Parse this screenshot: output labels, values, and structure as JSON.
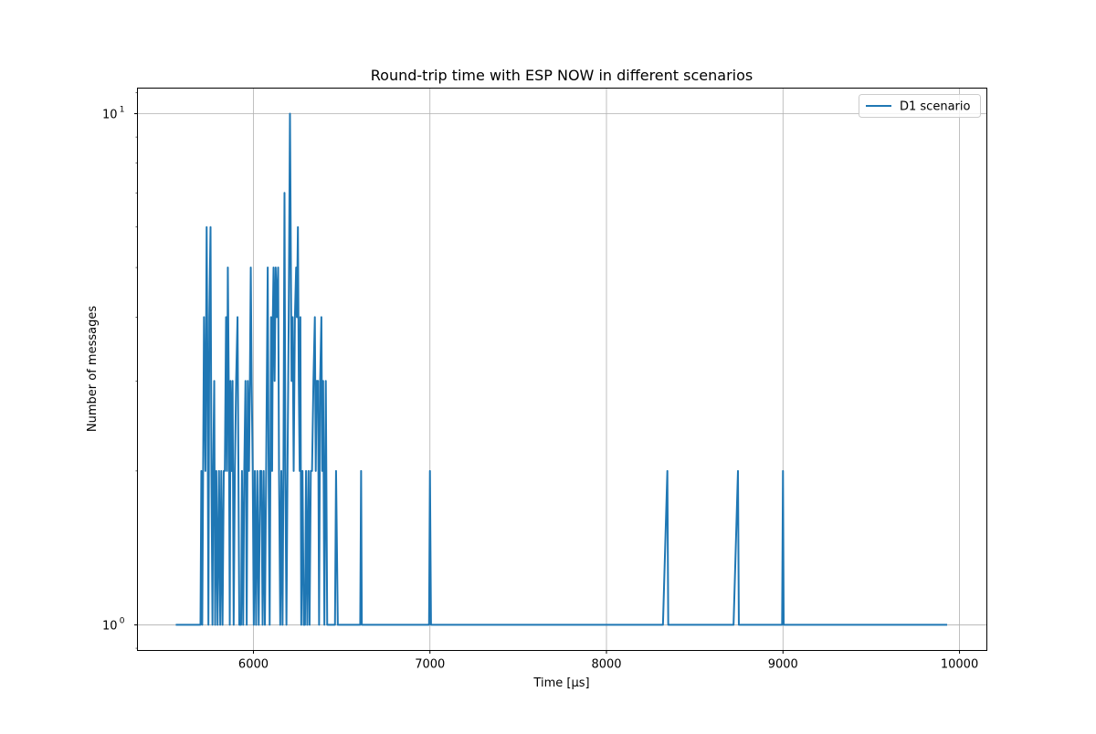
{
  "chart_data": {
    "type": "line",
    "title": "Round-trip time with ESP NOW in different scenarios",
    "xlabel": "Time [µs]",
    "ylabel": "Number of messages",
    "xlim": [
      5343,
      10155
    ],
    "ylim": [
      0.891,
      11.22
    ],
    "yscale": "log",
    "grid": true,
    "legend_placement": "top-right",
    "xticks": [
      6000,
      7000,
      8000,
      9000,
      10000
    ],
    "xtick_labels": [
      "6000",
      "7000",
      "8000",
      "9000",
      "10000"
    ],
    "yticks": [
      1,
      10
    ],
    "ytick_labels": [
      {
        "base": "10",
        "exp": "0"
      },
      {
        "base": "10",
        "exp": "1"
      }
    ],
    "series": [
      {
        "name": "D1 scenario",
        "color": "#1f77b4",
        "points": [
          [
            5560,
            1
          ],
          [
            5700,
            1
          ],
          [
            5705,
            2
          ],
          [
            5710,
            1
          ],
          [
            5715,
            2
          ],
          [
            5720,
            4
          ],
          [
            5728,
            2
          ],
          [
            5735,
            6
          ],
          [
            5740,
            3
          ],
          [
            5745,
            1
          ],
          [
            5750,
            4
          ],
          [
            5757,
            6
          ],
          [
            5762,
            2
          ],
          [
            5768,
            1
          ],
          [
            5772,
            2
          ],
          [
            5778,
            3
          ],
          [
            5783,
            1
          ],
          [
            5790,
            2
          ],
          [
            5797,
            1
          ],
          [
            5805,
            2
          ],
          [
            5812,
            1
          ],
          [
            5818,
            2
          ],
          [
            5825,
            1
          ],
          [
            5832,
            2
          ],
          [
            5838,
            2
          ],
          [
            5845,
            4
          ],
          [
            5850,
            2
          ],
          [
            5855,
            5
          ],
          [
            5860,
            3
          ],
          [
            5866,
            1
          ],
          [
            5870,
            3
          ],
          [
            5876,
            2
          ],
          [
            5882,
            3
          ],
          [
            5888,
            1
          ],
          [
            5895,
            2
          ],
          [
            5902,
            3
          ],
          [
            5910,
            4
          ],
          [
            5915,
            2
          ],
          [
            5920,
            1
          ],
          [
            5930,
            1
          ],
          [
            5935,
            2
          ],
          [
            5942,
            1
          ],
          [
            5948,
            2
          ],
          [
            5955,
            3
          ],
          [
            5962,
            1
          ],
          [
            5968,
            3
          ],
          [
            5975,
            2
          ],
          [
            5980,
            3
          ],
          [
            5985,
            5
          ],
          [
            5990,
            3
          ],
          [
            5996,
            2
          ],
          [
            6002,
            1
          ],
          [
            6008,
            2
          ],
          [
            6015,
            1
          ],
          [
            6022,
            2
          ],
          [
            6030,
            1
          ],
          [
            6038,
            2
          ],
          [
            6045,
            2
          ],
          [
            6052,
            1
          ],
          [
            6058,
            2
          ],
          [
            6065,
            1
          ],
          [
            6072,
            2
          ],
          [
            6081,
            5
          ],
          [
            6086,
            2
          ],
          [
            6092,
            1
          ],
          [
            6100,
            4
          ],
          [
            6106,
            2
          ],
          [
            6110,
            4
          ],
          [
            6114,
            5
          ],
          [
            6120,
            3
          ],
          [
            6126,
            5
          ],
          [
            6132,
            4
          ],
          [
            6140,
            5
          ],
          [
            6145,
            2
          ],
          [
            6152,
            1
          ],
          [
            6158,
            2
          ],
          [
            6165,
            1
          ],
          [
            6170,
            2
          ],
          [
            6176,
            7
          ],
          [
            6181,
            2
          ],
          [
            6187,
            1
          ],
          [
            6193,
            2
          ],
          [
            6200,
            4
          ],
          [
            6207,
            10
          ],
          [
            6211,
            6
          ],
          [
            6216,
            3
          ],
          [
            6222,
            4
          ],
          [
            6228,
            2
          ],
          [
            6235,
            4
          ],
          [
            6242,
            5
          ],
          [
            6246,
            4
          ],
          [
            6252,
            6
          ],
          [
            6257,
            3
          ],
          [
            6262,
            2
          ],
          [
            6266,
            4
          ],
          [
            6271,
            1
          ],
          [
            6278,
            2
          ],
          [
            6285,
            1
          ],
          [
            6292,
            1
          ],
          [
            6298,
            2
          ],
          [
            6305,
            1
          ],
          [
            6312,
            2
          ],
          [
            6318,
            1
          ],
          [
            6325,
            2
          ],
          [
            6332,
            2
          ],
          [
            6340,
            3
          ],
          [
            6348,
            4
          ],
          [
            6353,
            2
          ],
          [
            6358,
            3
          ],
          [
            6366,
            3
          ],
          [
            6372,
            1
          ],
          [
            6378,
            3
          ],
          [
            6385,
            4
          ],
          [
            6390,
            2
          ],
          [
            6395,
            3
          ],
          [
            6402,
            1
          ],
          [
            6410,
            3
          ],
          [
            6418,
            1
          ],
          [
            6425,
            1
          ],
          [
            6462,
            1
          ],
          [
            6468,
            2
          ],
          [
            6478,
            1
          ],
          [
            6605,
            1
          ],
          [
            6610,
            2
          ],
          [
            6614,
            1
          ],
          [
            6995,
            1
          ],
          [
            7000,
            2
          ],
          [
            7006,
            1
          ],
          [
            8320,
            1
          ],
          [
            8345,
            2
          ],
          [
            8350,
            1
          ],
          [
            8720,
            1
          ],
          [
            8745,
            2
          ],
          [
            8750,
            1
          ],
          [
            8995,
            1
          ],
          [
            9000,
            2
          ],
          [
            9004,
            1
          ],
          [
            9930,
            1
          ]
        ]
      }
    ]
  }
}
